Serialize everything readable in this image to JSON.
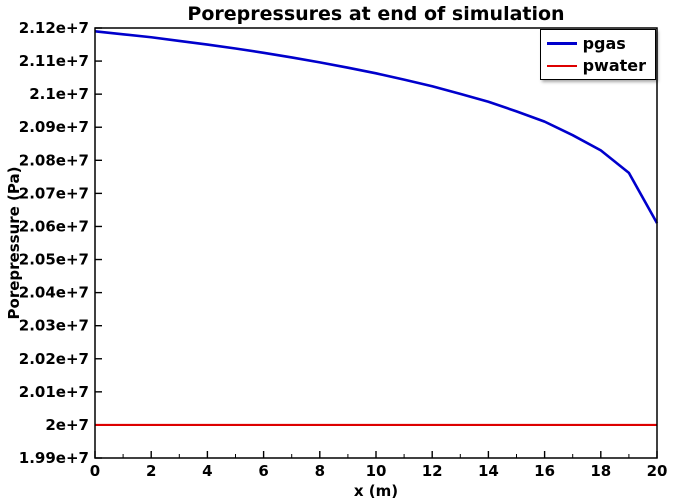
{
  "chart_data": {
    "type": "line",
    "title": "Porepressures at end of simulation",
    "xlabel": "x (m)",
    "ylabel": "Porepressure (Pa)",
    "xlim": [
      0,
      20
    ],
    "ylim": [
      19900000,
      21200000
    ],
    "grid": false,
    "legend_position": "top-right",
    "background_color": "#ffffff",
    "axis_color": "#000000",
    "x_ticks": [
      0,
      2,
      4,
      6,
      8,
      10,
      12,
      14,
      16,
      18,
      20
    ],
    "x_minor_ticks": [
      1,
      3,
      5,
      7,
      9,
      11,
      13,
      15,
      17,
      19
    ],
    "y_ticks": [
      19900000,
      20000000,
      20100000,
      20200000,
      20300000,
      20400000,
      20500000,
      20600000,
      20700000,
      20800000,
      20900000,
      21000000,
      21100000,
      21200000
    ],
    "y_tick_labels": [
      "1.99e+7",
      "2e+7",
      "2.01e+7",
      "2.02e+7",
      "2.03e+7",
      "2.04e+7",
      "2.05e+7",
      "2.06e+7",
      "2.07e+7",
      "2.08e+7",
      "2.09e+7",
      "2.1e+7",
      "2.11e+7",
      "2.12e+7"
    ],
    "x": [
      0,
      1,
      2,
      3,
      4,
      5,
      6,
      7,
      8,
      9,
      10,
      11,
      12,
      13,
      14,
      15,
      16,
      17,
      18,
      19,
      20
    ],
    "series": [
      {
        "name": "pgas",
        "color": "#0000cc",
        "line_width": 2.6,
        "values": [
          21190000,
          21181000,
          21172000,
          21161000,
          21150000,
          21138000,
          21125000,
          21111000,
          21096000,
          21080000,
          21063000,
          21044000,
          21024000,
          21001000,
          20977000,
          20948000,
          20917000,
          20876000,
          20830000,
          20762000,
          20610000
        ]
      },
      {
        "name": "pwater",
        "color": "#dd0000",
        "line_width": 2.2,
        "values": [
          20000000,
          20000000,
          20000000,
          20000000,
          20000000,
          20000000,
          20000000,
          20000000,
          20000000,
          20000000,
          20000000,
          20000000,
          20000000,
          20000000,
          20000000,
          20000000,
          20000000,
          20000000,
          20000000,
          20000000,
          20000000
        ]
      }
    ]
  }
}
